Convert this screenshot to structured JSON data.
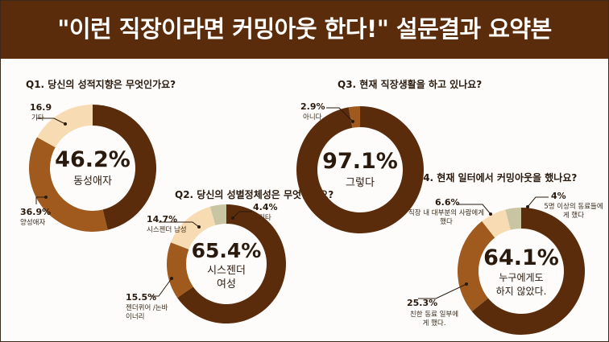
{
  "header": {
    "title": "\"이런 직장이라면 커밍아웃 한다!\" 설문결과 요약본"
  },
  "colors": {
    "banner": "#5a2c0c",
    "dark_brown": "#5a2c0c",
    "mid_brown": "#a05a1e",
    "light_peach": "#f7dcb3",
    "sage": "#c9c4a2"
  },
  "chart_data": [
    {
      "type": "pie",
      "title": "Q1. 당신의 성적지향은 무엇인가요?",
      "center_value": "46.2%",
      "center_label": "동성애자",
      "slices": [
        {
          "label": "동성애자",
          "value": 46.2,
          "pct_text": "46.2%",
          "color": "#5a2c0c"
        },
        {
          "label": "양성애자",
          "value": 36.9,
          "pct_text": "36.9%",
          "color": "#a05a1e"
        },
        {
          "label": "기타",
          "value": 16.9,
          "pct_text": "16.9",
          "color": "#f7dcb3"
        }
      ]
    },
    {
      "type": "pie",
      "title": "Q2. 당신의 성별정체성은 무엇인가요?",
      "center_value": "65.4%",
      "center_label": "시스젠더 여성",
      "slices": [
        {
          "label": "시스젠더 여성",
          "value": 65.4,
          "pct_text": "65.4%",
          "color": "#5a2c0c"
        },
        {
          "label": "젠더퀴어 /논바이너리",
          "value": 15.5,
          "pct_text": "15.5%",
          "color": "#a05a1e"
        },
        {
          "label": "시스젠더 남성",
          "value": 14.7,
          "pct_text": "14.7%",
          "color": "#f7dcb3"
        },
        {
          "label": "기타",
          "value": 4.4,
          "pct_text": "4.4%",
          "color": "#c9c4a2"
        }
      ]
    },
    {
      "type": "pie",
      "title": "Q3. 현재 직장생활을 하고 있나요?",
      "center_value": "97.1%",
      "center_label": "그렇다",
      "slices": [
        {
          "label": "그렇다",
          "value": 97.1,
          "pct_text": "97.1%",
          "color": "#5a2c0c"
        },
        {
          "label": "아니다",
          "value": 2.9,
          "pct_text": "2.9%",
          "color": "#a05a1e"
        }
      ]
    },
    {
      "type": "pie",
      "title": "Q4. 현재 일터에서 커밍아웃을 했나요?",
      "center_value": "64.1%",
      "center_label": "누구에게도 하지 않았다.",
      "slices": [
        {
          "label": "누구에게도 하지 않았다.",
          "value": 64.1,
          "pct_text": "64.1%",
          "color": "#5a2c0c"
        },
        {
          "label": "친한 동료 일부에게 했다.",
          "value": 25.3,
          "pct_text": "25.3%",
          "color": "#a05a1e"
        },
        {
          "label": "직장 내 대부분의 사람에게 했다",
          "value": 6.6,
          "pct_text": "6.6%",
          "color": "#f7dcb3"
        },
        {
          "label": "5명 이상의 동료들에게 했다",
          "value": 4.0,
          "pct_text": "4%",
          "color": "#c9c4a2"
        }
      ]
    }
  ]
}
